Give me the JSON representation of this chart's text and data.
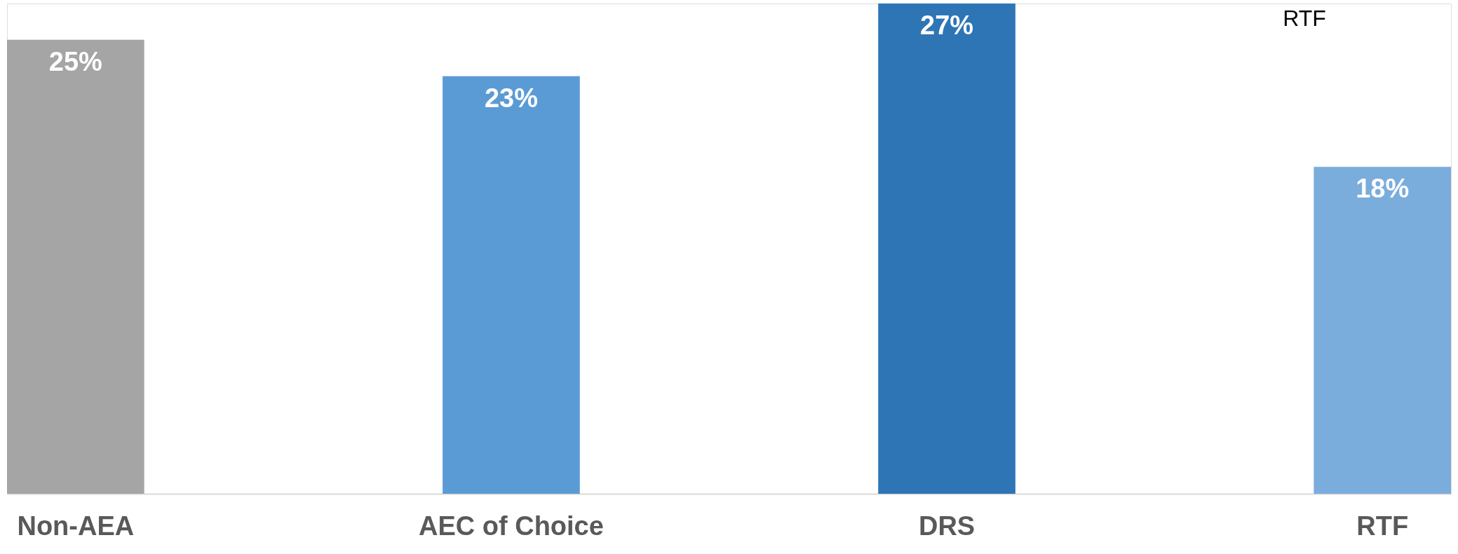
{
  "chart_data": {
    "type": "bar",
    "categories": [
      "Non-AEA",
      "AEC of Choice",
      "DRS",
      "RTF"
    ],
    "values": [
      25,
      23,
      27,
      18
    ],
    "colors": [
      "#a5a5a5",
      "#5b9bd5",
      "#2e75b6",
      "#7aaddc"
    ],
    "value_labels": [
      "25%",
      "23%",
      "27%",
      "18%"
    ],
    "annotations": [
      "RTF"
    ],
    "grid": false,
    "legend": false
  }
}
